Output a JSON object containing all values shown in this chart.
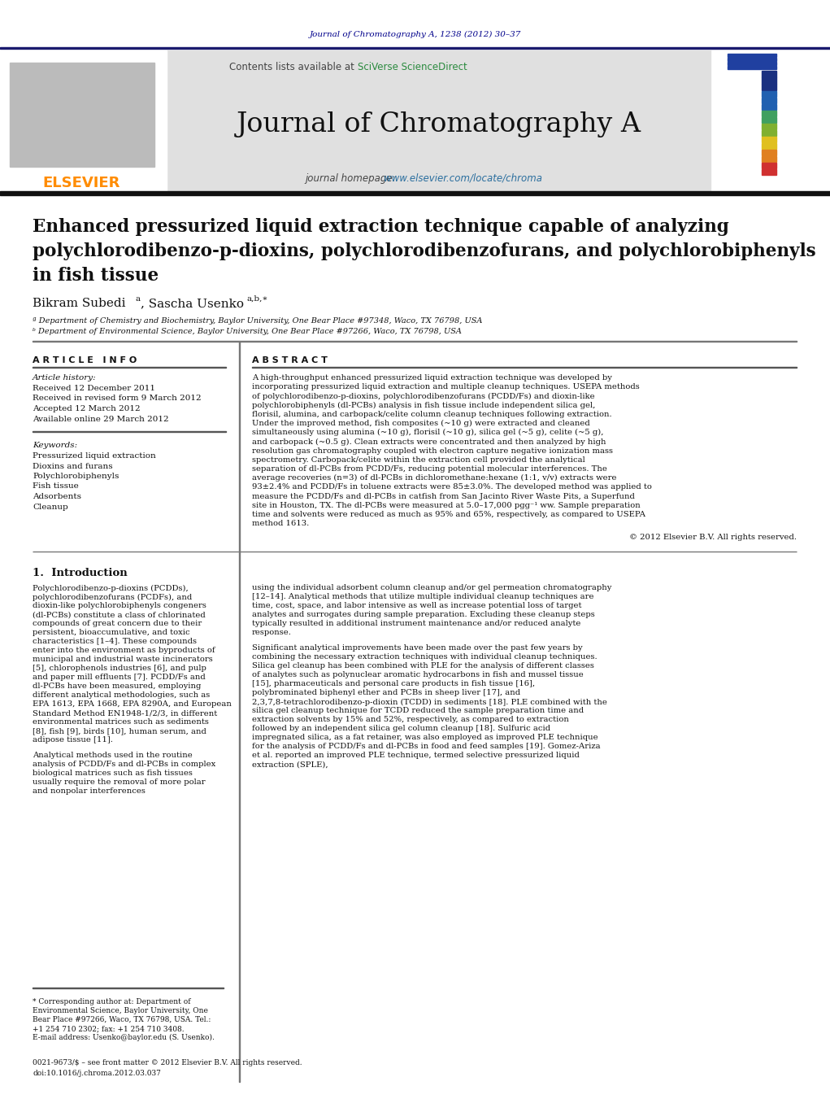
{
  "page_bg": "#ffffff",
  "top_journal_ref": "Journal of Chromatography A, 1238 (2012) 30–37",
  "top_ref_color": "#00008B",
  "journal_name": "Journal of Chromatography A",
  "contents_text": "Contents lists available at ",
  "sciverse_text": "SciVerse ScienceDirect",
  "homepage_prefix": "journal homepage: ",
  "homepage_url": "www.elsevier.com/locate/chroma",
  "header_bg": "#e0e0e0",
  "elsevier_color": "#FF8C00",
  "article_title_line1": "Enhanced pressurized liquid extraction technique capable of analyzing",
  "article_title_line2": "polychlorodibenzo-p-dioxins, polychlorodibenzofurans, and polychlorobiphenyls",
  "article_title_line3": "in fish tissue",
  "affil_a": "ª Department of Chemistry and Biochemistry, Baylor University, One Bear Place #97348, Waco, TX 76798, USA",
  "affil_b": "ᵇ Department of Environmental Science, Baylor University, One Bear Place #97266, Waco, TX 76798, USA",
  "article_info_title": "A R T I C L E   I N F O",
  "abstract_title": "A B S T R A C T",
  "article_history_label": "Article history:",
  "received_label": "Received 12 December 2011",
  "revised_label": "Received in revised form 9 March 2012",
  "accepted_label": "Accepted 12 March 2012",
  "available_label": "Available online 29 March 2012",
  "keywords_label": "Keywords:",
  "kw1": "Pressurized liquid extraction",
  "kw2": "Dioxins and furans",
  "kw3": "Polychlorobiphenyls",
  "kw4": "Fish tissue",
  "kw5": "Adsorbents",
  "kw6": "Cleanup",
  "abstract_text": "A high-throughput enhanced pressurized liquid extraction technique was developed by incorporating pressurized liquid extraction and multiple cleanup techniques. USEPA methods of polychlorodibenzo-p-dioxins, polychlorodibenzofurans (PCDD/Fs) and dioxin-like polychlorobiphenyls (dl-PCBs) analysis in fish tissue include independent silica gel, florisil, alumina, and carbopack/celite column cleanup techniques following extraction. Under the improved method, fish composites (~10 g) were extracted and cleaned simultaneously using alumina (~10 g), florisil (~10 g), silica gel (~5 g), celite (~5 g), and carbopack (~0.5 g). Clean extracts were concentrated and then analyzed by high resolution gas chromatography coupled with electron capture negative ionization mass spectrometry. Carbopack/celite within the extraction cell provided the analytical separation of dl-PCBs from PCDD/Fs, reducing potential molecular interferences. The average recoveries (n=3) of dl-PCBs in dichloromethane:hexane (1:1, v/v) extracts were 93±2.4% and PCDD/Fs in toluene extracts were 85±3.0%. The developed method was applied to measure the PCDD/Fs and dl-PCBs in catfish from San Jacinto River Waste Pits, a Superfund site in Houston, TX. The dl-PCBs were measured at 5.0–17,000 pgg⁻¹ ww. Sample preparation time and solvents were reduced as much as 95% and 65%, respectively, as compared to USEPA method 1613.",
  "copyright_text": "© 2012 Elsevier B.V. All rights reserved.",
  "section1_title": "1.  Introduction",
  "intro_para1": "Polychlorodibenzo-p-dioxins (PCDDs), polychlorodibenzofurans (PCDFs), and dioxin-like polychlorobiphenyls congeners (dl-PCBs) constitute a class of chlorinated compounds of great concern due to their persistent, bioaccumulative, and toxic characteristics [1–4]. These compounds enter into the environment as byproducts of municipal and industrial waste incinerators [5], chlorophenols industries [6], and pulp and paper mill effluents [7]. PCDD/Fs and dl-PCBs have been measured, employing different analytical methodologies, such as EPA 1613, EPA 1668, EPA 8290A, and European Standard Method EN1948-1/2/3, in different environmental matrices such as sediments [8], fish [9], birds [10], human serum, and adipose tissue [11].",
  "intro_para2": "Analytical methods used in the routine analysis of PCDD/Fs and dl-PCBs in complex biological matrices such as fish tissues usually require the removal of more polar and nonpolar interferences",
  "right_col_para1": "using the individual adsorbent column cleanup and/or gel permeation chromatography [12–14]. Analytical methods that utilize multiple individual cleanup techniques are time, cost, space, and labor intensive as well as increase potential loss of target analytes and surrogates during sample preparation. Excluding these cleanup steps typically resulted in additional instrument maintenance and/or reduced analyte response.",
  "right_col_para2": "Significant analytical improvements have been made over the past few years by combining the necessary extraction techniques with individual cleanup techniques. Silica gel cleanup has been combined with PLE for the analysis of different classes of analytes such as polynuclear aromatic hydrocarbons in fish and mussel tissue [15], pharmaceuticals and personal care products in fish tissue [16], polybrominated biphenyl ether and PCBs in sheep liver [17], and 2,3,7,8-tetrachlorodibenzo-p-dioxin (TCDD) in sediments [18]. PLE combined with the silica gel cleanup technique for TCDD reduced the sample preparation time and extraction solvents by 15% and 52%, respectively, as compared to extraction followed by an independent silica gel column cleanup [18]. Sulfuric acid impregnated silica, as a fat retainer, was also employed as improved PLE technique for the analysis of PCDD/Fs and dl-PCBs in food and feed samples [19]. Gomez-Ariza et al. reported an improved PLE technique, termed selective pressurized liquid extraction (SPLE),",
  "footnote_star": "* Corresponding author at: Department of Environmental Science, Baylor University, One Bear Place #97266, Waco, TX 76798, USA. Tel.: +1 254 710 2302; fax: +1 254 710 3408.",
  "footnote_email": "E-mail address: Usenko@baylor.edu (S. Usenko).",
  "issn_text": "0021-9673/$ – see front matter © 2012 Elsevier B.V. All rights reserved.",
  "doi_text": "doi:10.1016/j.chroma.2012.03.037",
  "text_color": "#000000",
  "link_color": "#2a6e9e",
  "sciverse_color": "#2a8a3e"
}
